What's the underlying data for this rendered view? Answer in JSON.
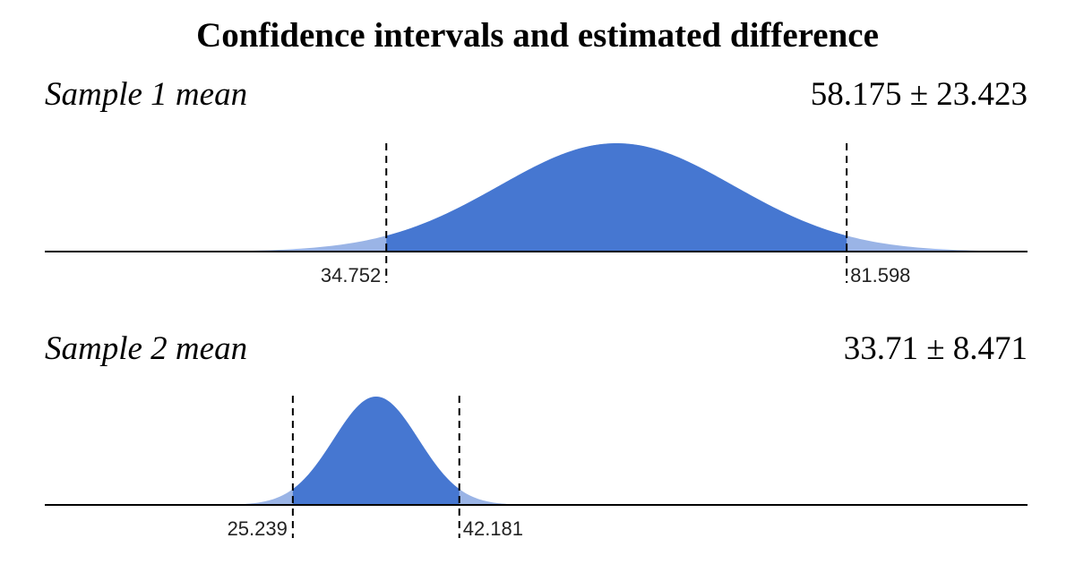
{
  "chart_data": {
    "type": "area",
    "title": "Confidence intervals and estimated difference",
    "x_range": [
      0,
      100
    ],
    "grid": false,
    "legend": "none",
    "panels": [
      {
        "label": "Sample 1 mean",
        "value_text": "58.175 ± 23.423",
        "mean": 58.175,
        "margin": 23.423,
        "lower": 34.752,
        "upper": 81.598,
        "lower_label": "34.752",
        "upper_label": "81.598",
        "fill_color": "#4677d1",
        "tail_color": "#9ab4e6"
      },
      {
        "label": "Sample 2 mean",
        "value_text": "33.71 ± 8.471",
        "mean": 33.71,
        "margin": 8.471,
        "lower": 25.239,
        "upper": 42.181,
        "lower_label": "25.239",
        "upper_label": "42.181",
        "fill_color": "#4677d1",
        "tail_color": "#9ab4e6"
      }
    ]
  }
}
